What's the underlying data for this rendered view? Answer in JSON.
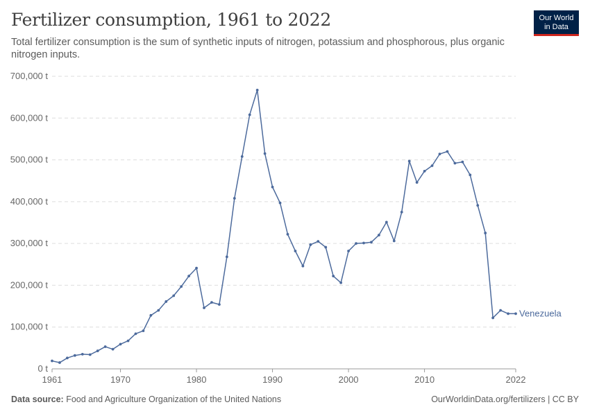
{
  "header": {
    "title": "Fertilizer consumption, 1961 to 2022",
    "subtitle": "Total fertilizer consumption is the sum of synthetic inputs of nitrogen, potassium and phosphorous, plus organic nitrogen inputs.",
    "logo_line1": "Our World",
    "logo_line2": "in Data"
  },
  "footer": {
    "source_label": "Data source:",
    "source_text": "Food and Agriculture Organization of the United Nations",
    "credit": "OurWorldinData.org/fertilizers | CC BY"
  },
  "colors": {
    "series": "#4c6a9c",
    "logo_bg": "#002147",
    "logo_accent": "#ce261e",
    "grid": "#dddddd"
  },
  "chart_data": {
    "type": "line",
    "title": "Fertilizer consumption, 1961 to 2022",
    "xlim": [
      1961,
      2022
    ],
    "ylim": [
      0,
      700000
    ],
    "grid": "horizontal dashed",
    "x_ticks": [
      1961,
      1970,
      1980,
      1990,
      2000,
      2010,
      2022
    ],
    "y_ticks": [
      {
        "value": 0,
        "label": "0 t"
      },
      {
        "value": 100000,
        "label": "100,000 t"
      },
      {
        "value": 200000,
        "label": "200,000 t"
      },
      {
        "value": 300000,
        "label": "300,000 t"
      },
      {
        "value": 400000,
        "label": "400,000 t"
      },
      {
        "value": 500000,
        "label": "500,000 t"
      },
      {
        "value": 600000,
        "label": "600,000 t"
      },
      {
        "value": 700000,
        "label": "700,000 t"
      }
    ],
    "series": [
      {
        "name": "Venezuela",
        "x": [
          1961,
          1962,
          1963,
          1964,
          1965,
          1966,
          1967,
          1968,
          1969,
          1970,
          1971,
          1972,
          1973,
          1974,
          1975,
          1976,
          1977,
          1978,
          1979,
          1980,
          1981,
          1982,
          1983,
          1984,
          1985,
          1986,
          1987,
          1988,
          1989,
          1990,
          1991,
          1992,
          1993,
          1994,
          1995,
          1996,
          1997,
          1998,
          1999,
          2000,
          2001,
          2002,
          2003,
          2004,
          2005,
          2006,
          2007,
          2008,
          2009,
          2010,
          2011,
          2012,
          2013,
          2014,
          2015,
          2016,
          2017,
          2018,
          2019,
          2020,
          2021,
          2022
        ],
        "values": [
          19000,
          15000,
          26000,
          32000,
          35000,
          34000,
          43000,
          53000,
          47000,
          59000,
          67000,
          84000,
          91000,
          128000,
          140000,
          161000,
          175000,
          197000,
          222000,
          241000,
          146000,
          159000,
          154000,
          268000,
          408000,
          508000,
          608000,
          667000,
          515000,
          435000,
          397000,
          322000,
          282000,
          246000,
          297000,
          305000,
          291000,
          222000,
          206000,
          282000,
          300000,
          301000,
          303000,
          320000,
          351000,
          306000,
          375000,
          497000,
          446000,
          473000,
          486000,
          514000,
          520000,
          492000,
          495000,
          464000,
          391000,
          325000,
          122000,
          140000,
          132000,
          132000
        ]
      }
    ]
  }
}
